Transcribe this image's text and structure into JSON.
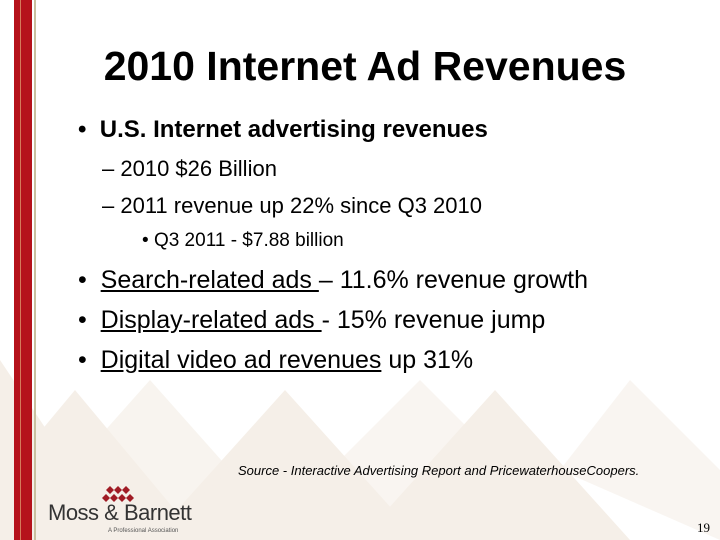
{
  "slide": {
    "title": "2010 Internet Ad Revenues",
    "bullets": [
      {
        "text": "U.S. Internet advertising revenues",
        "sub": [
          "2010 $26 Billion",
          "2011 revenue up 22% since Q3 2010"
        ],
        "subsub": [
          "Q3 2011 - $7.88 billion"
        ]
      },
      {
        "underlined": "Search-related ads ",
        "rest": "– 11.6% revenue growth"
      },
      {
        "underlined": "Display-related ads ",
        "rest": "- 15% revenue jump"
      },
      {
        "underlined": "Digital video ad revenues",
        "rest": " up 31%"
      }
    ],
    "source": "Source - Interactive Advertising Report and PricewaterhouseCoopers.",
    "page_number": "19"
  },
  "logo": {
    "name": "Moss & Barnett",
    "tagline": "A Professional Association"
  },
  "colors": {
    "accent": "#b5121b",
    "diamond": "#f5efe8"
  }
}
